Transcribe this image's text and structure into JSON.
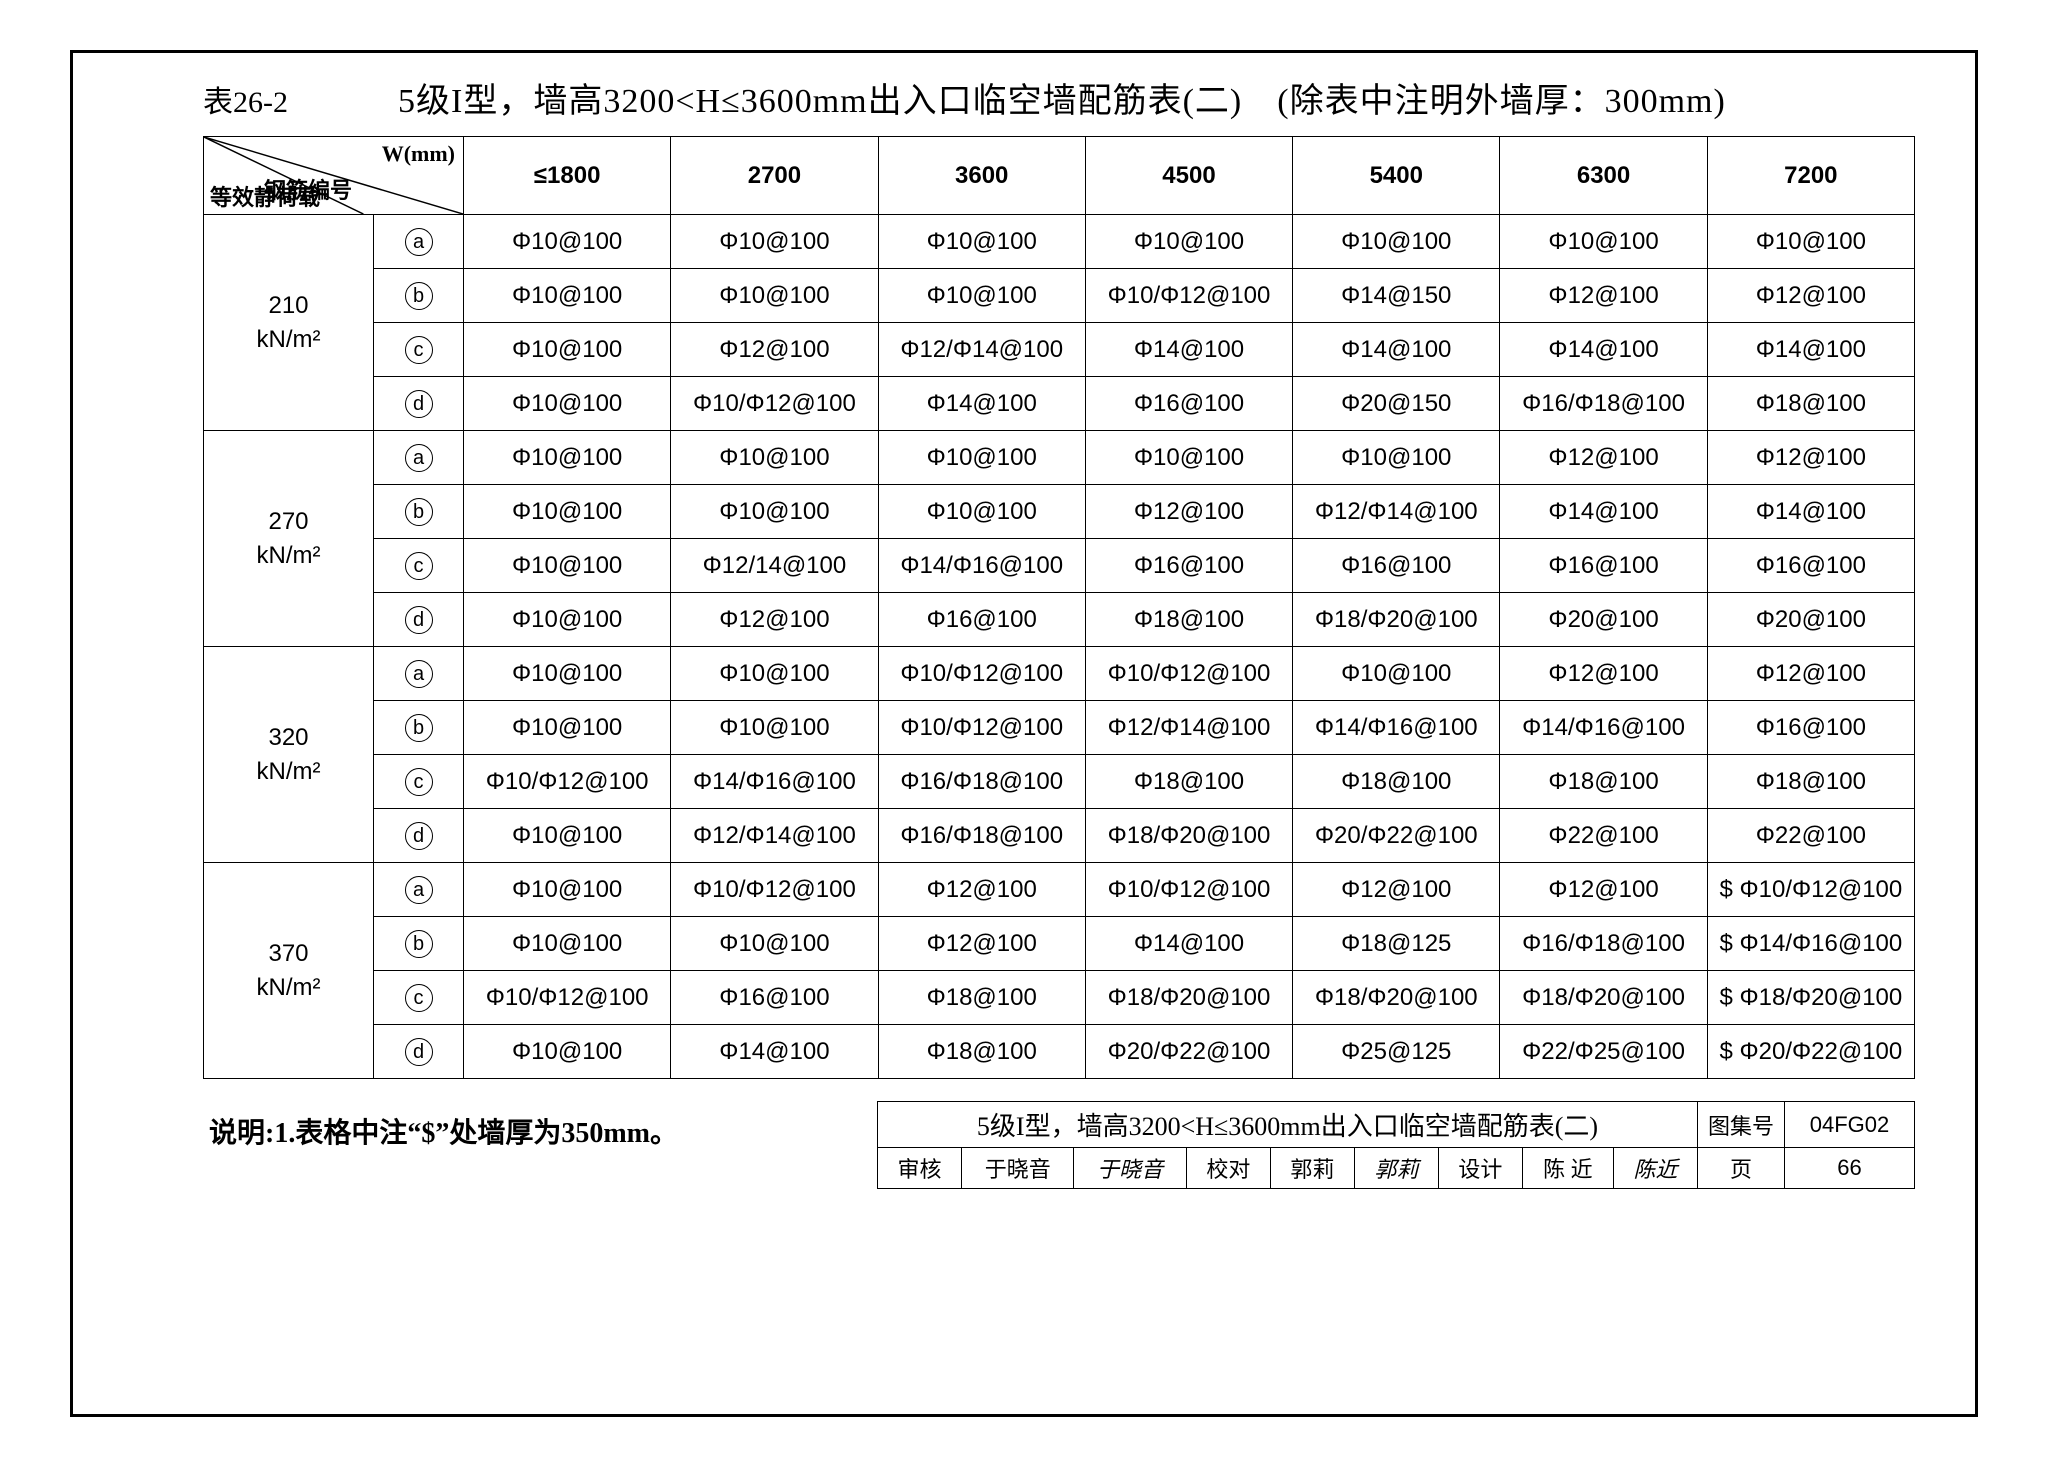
{
  "table_number": "表26-2",
  "title": "5级I型，墙高3200<H≤3600mm出入口临空墙配筋表(二)　(除表中注明外墙厚：300mm)",
  "header_diag": {
    "top": "W(mm)",
    "mid": "钢筋编号",
    "bot": "等效静荷载"
  },
  "columns": [
    "≤1800",
    "2700",
    "3600",
    "4500",
    "5400",
    "6300",
    "7200"
  ],
  "row_labels": [
    "a",
    "b",
    "c",
    "d"
  ],
  "groups": [
    {
      "load": "210",
      "unit": "kN/m²",
      "rows": [
        [
          "Φ10@100",
          "Φ10@100",
          "Φ10@100",
          "Φ10@100",
          "Φ10@100",
          "Φ10@100",
          "Φ10@100"
        ],
        [
          "Φ10@100",
          "Φ10@100",
          "Φ10@100",
          "Φ10/Φ12@100",
          "Φ14@150",
          "Φ12@100",
          "Φ12@100"
        ],
        [
          "Φ10@100",
          "Φ12@100",
          "Φ12/Φ14@100",
          "Φ14@100",
          "Φ14@100",
          "Φ14@100",
          "Φ14@100"
        ],
        [
          "Φ10@100",
          "Φ10/Φ12@100",
          "Φ14@100",
          "Φ16@100",
          "Φ20@150",
          "Φ16/Φ18@100",
          "Φ18@100"
        ]
      ]
    },
    {
      "load": "270",
      "unit": "kN/m²",
      "rows": [
        [
          "Φ10@100",
          "Φ10@100",
          "Φ10@100",
          "Φ10@100",
          "Φ10@100",
          "Φ12@100",
          "Φ12@100"
        ],
        [
          "Φ10@100",
          "Φ10@100",
          "Φ10@100",
          "Φ12@100",
          "Φ12/Φ14@100",
          "Φ14@100",
          "Φ14@100"
        ],
        [
          "Φ10@100",
          "Φ12/14@100",
          "Φ14/Φ16@100",
          "Φ16@100",
          "Φ16@100",
          "Φ16@100",
          "Φ16@100"
        ],
        [
          "Φ10@100",
          "Φ12@100",
          "Φ16@100",
          "Φ18@100",
          "Φ18/Φ20@100",
          "Φ20@100",
          "Φ20@100"
        ]
      ]
    },
    {
      "load": "320",
      "unit": "kN/m²",
      "rows": [
        [
          "Φ10@100",
          "Φ10@100",
          "Φ10/Φ12@100",
          "Φ10/Φ12@100",
          "Φ10@100",
          "Φ12@100",
          "Φ12@100"
        ],
        [
          "Φ10@100",
          "Φ10@100",
          "Φ10/Φ12@100",
          "Φ12/Φ14@100",
          "Φ14/Φ16@100",
          "Φ14/Φ16@100",
          "Φ16@100"
        ],
        [
          "Φ10/Φ12@100",
          "Φ14/Φ16@100",
          "Φ16/Φ18@100",
          "Φ18@100",
          "Φ18@100",
          "Φ18@100",
          "Φ18@100"
        ],
        [
          "Φ10@100",
          "Φ12/Φ14@100",
          "Φ16/Φ18@100",
          "Φ18/Φ20@100",
          "Φ20/Φ22@100",
          "Φ22@100",
          "Φ22@100"
        ]
      ]
    },
    {
      "load": "370",
      "unit": "kN/m²",
      "rows": [
        [
          "Φ10@100",
          "Φ10/Φ12@100",
          "Φ12@100",
          "Φ10/Φ12@100",
          "Φ12@100",
          "Φ12@100",
          "$ Φ10/Φ12@100"
        ],
        [
          "Φ10@100",
          "Φ10@100",
          "Φ12@100",
          "Φ14@100",
          "Φ18@125",
          "Φ16/Φ18@100",
          "$ Φ14/Φ16@100"
        ],
        [
          "Φ10/Φ12@100",
          "Φ16@100",
          "Φ18@100",
          "Φ18/Φ20@100",
          "Φ18/Φ20@100",
          "Φ18/Φ20@100",
          "$ Φ18/Φ20@100"
        ],
        [
          "Φ10@100",
          "Φ14@100",
          "Φ18@100",
          "Φ20/Φ22@100",
          "Φ25@125",
          "Φ22/Φ25@100",
          "$ Φ20/Φ22@100"
        ]
      ]
    }
  ],
  "note": "说明:1.表格中注“$”处墙厚为350mm。",
  "titleblock": {
    "title": "5级I型，墙高3200<H≤3600mm出入口临空墙配筋表(二)",
    "drawing_label": "图集号",
    "drawing_no": "04FG02",
    "review_label": "审核",
    "review_name": "于晓音",
    "review_sig": "于晓音",
    "check_label": "校对",
    "check_name": "郭莉",
    "check_sig": "郭莉",
    "design_label": "设计",
    "design_name": "陈 近",
    "design_sig": "陈近",
    "page_label": "页",
    "page_no": "66"
  }
}
